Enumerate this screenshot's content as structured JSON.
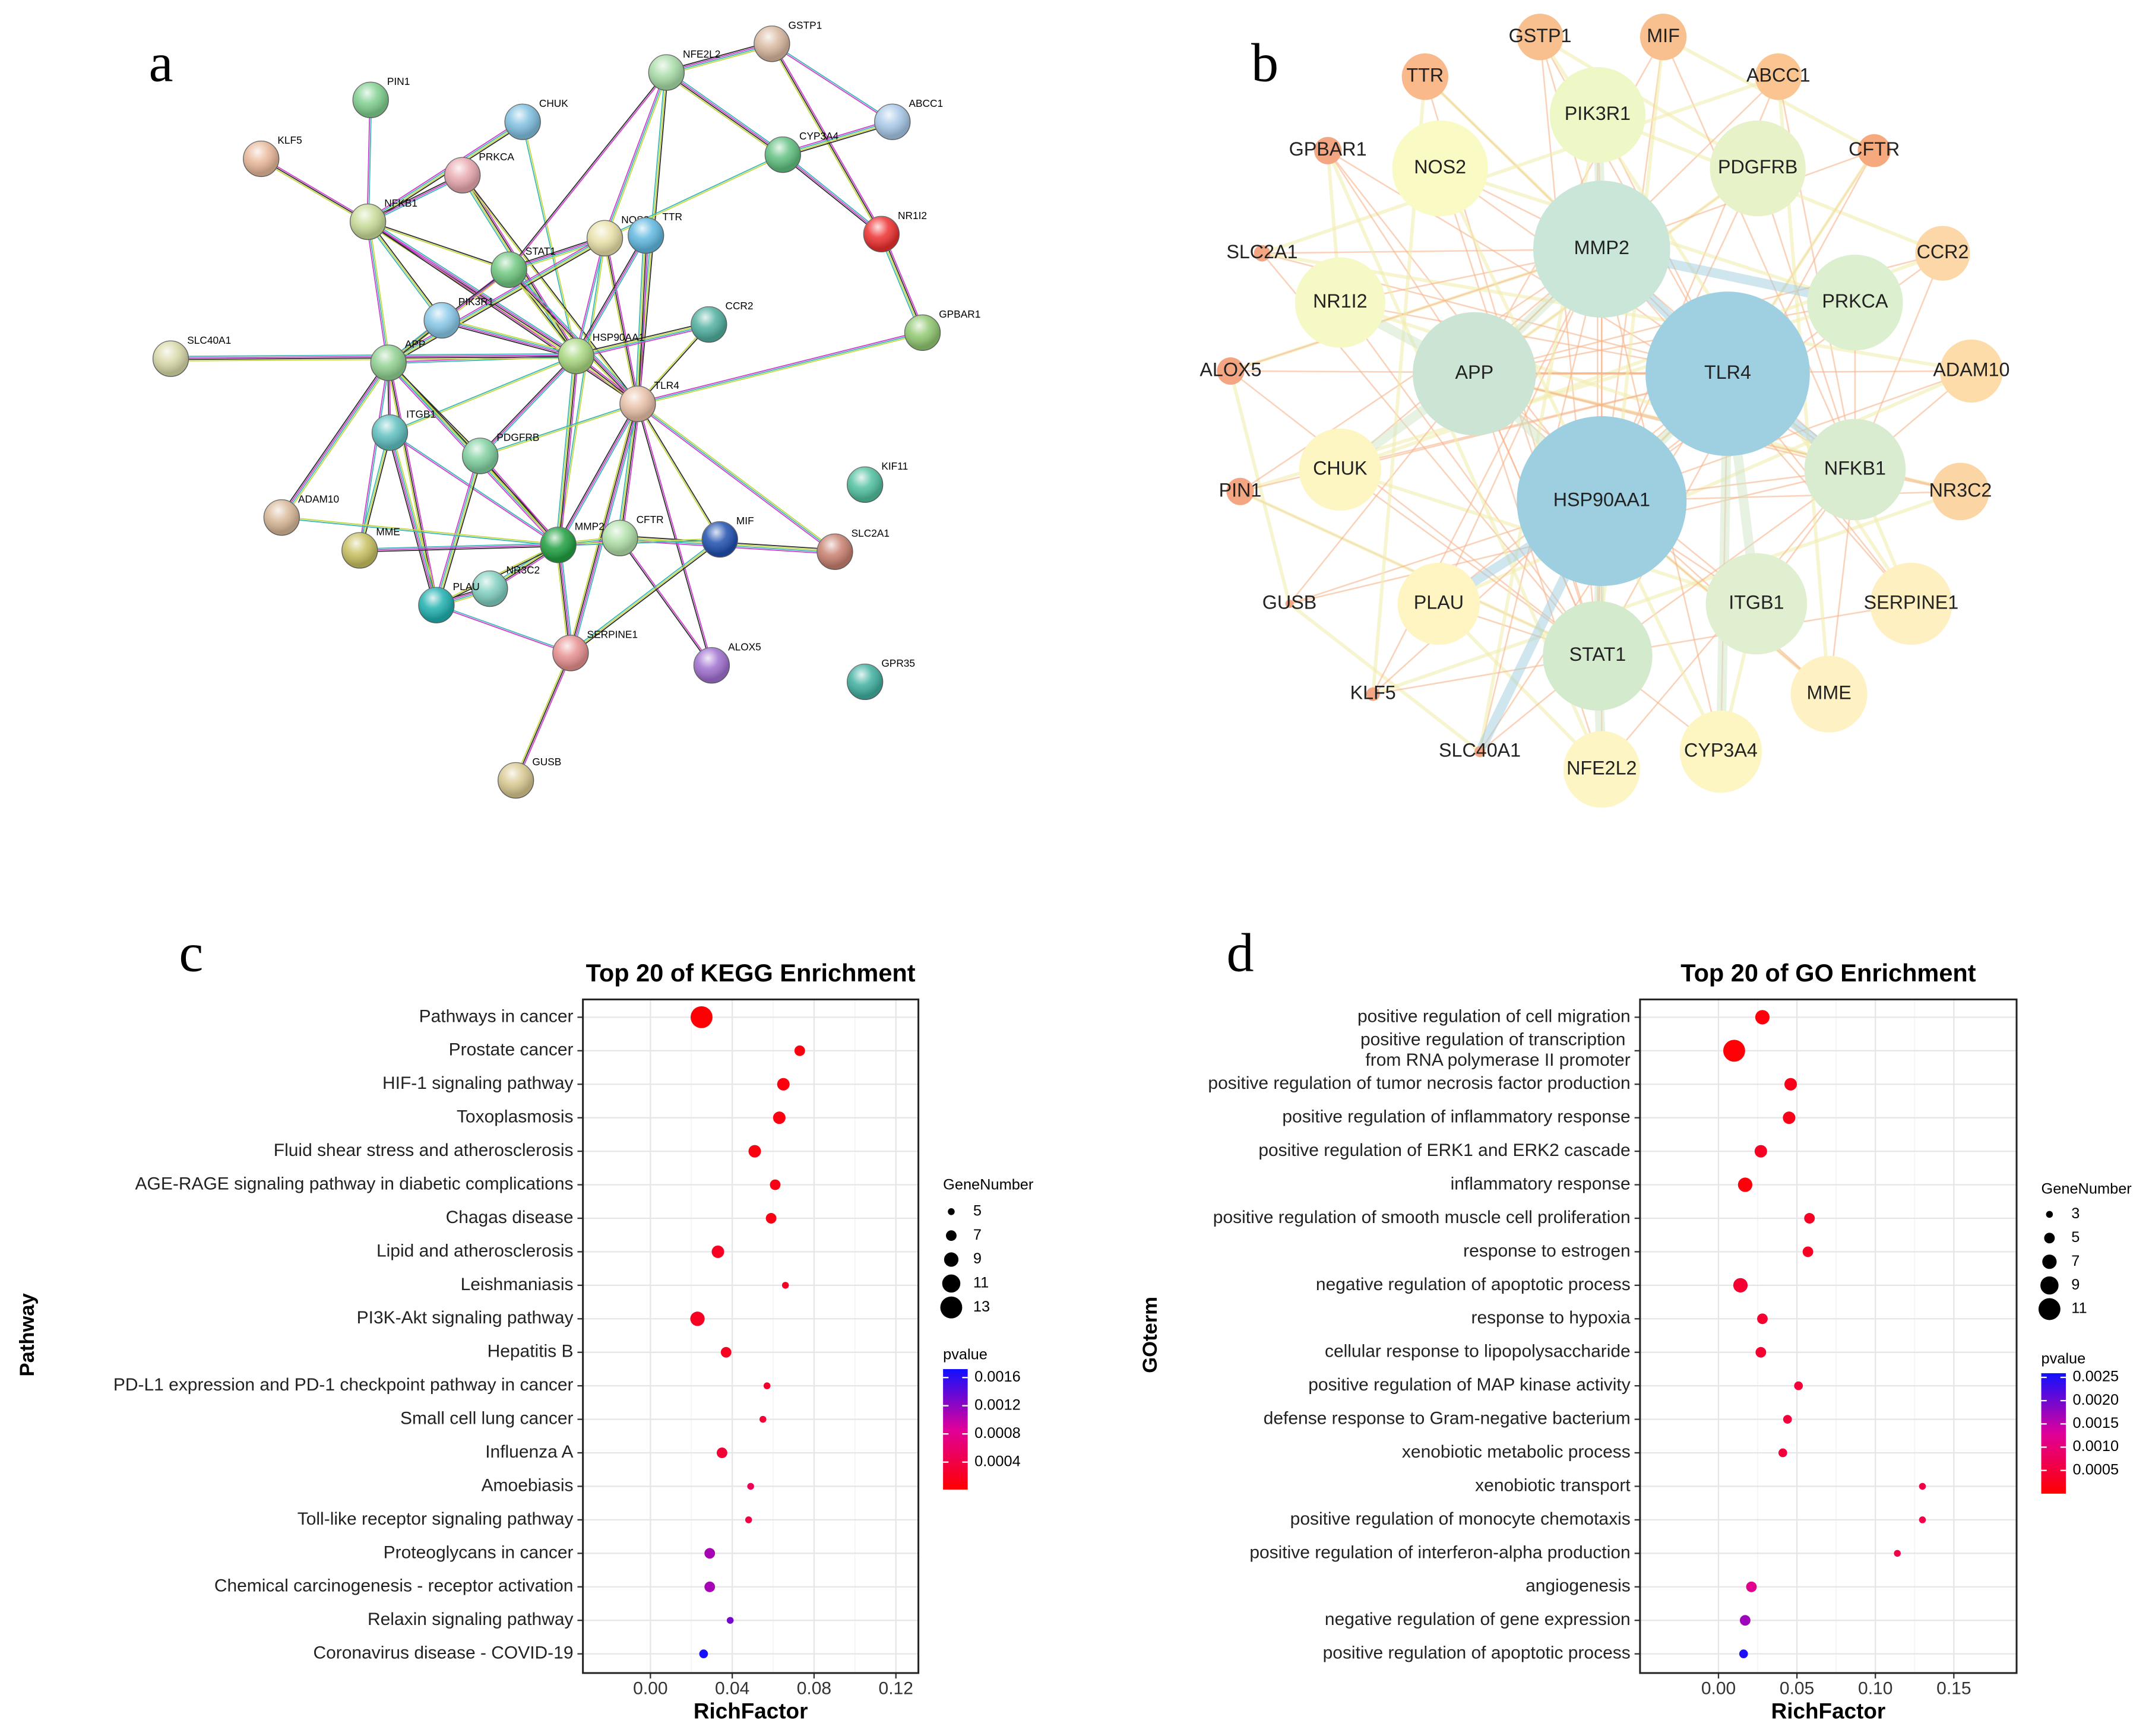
{
  "panel_labels": [
    "a",
    "b",
    "c",
    "d"
  ],
  "networks": [
    {
      "labels": [
        "PIN1",
        "CHUK",
        "KLF5",
        "PRKCA",
        "NFE2L2",
        "GSTP1",
        "ABCC1",
        "CYP3A4",
        "NR1I2",
        "NFKB1",
        "NOS2",
        "TTR",
        "STAT1",
        "PIK3R1",
        "HSP90AA1",
        "CCR2",
        "GPBAR1",
        "SLC40A1",
        "APP",
        "TLR4",
        "ITGB1",
        "PDGFRB",
        "KIF11",
        "ADAM10",
        "MME",
        "MMP2",
        "CFTR",
        "MIF",
        "SLC2A1",
        "NR3C2",
        "PLAU",
        "SERPINE1",
        "ALOX5",
        "GPR35",
        "GUSB"
      ]
    },
    {
      "labels": [
        "GSTP1",
        "MIF",
        "TTR",
        "ABCC1",
        "PIK3R1",
        "GPBAR1",
        "NOS2",
        "PDGFRB",
        "CFTR",
        "MMP2",
        "SLC2A1",
        "CCR2",
        "NR1I2",
        "PRKCA",
        "APP",
        "TLR4",
        "ALOX5",
        "ADAM10",
        "CHUK",
        "NFKB1",
        "PIN1",
        "NR3C2",
        "HSP90AA1",
        "GUSB",
        "PLAU",
        "ITGB1",
        "SERPINE1",
        "STAT1",
        "KLF5",
        "MME",
        "SLC40A1",
        "NFE2L2",
        "CYP3A4"
      ]
    }
  ],
  "chart_data": [
    {
      "type": "scatter",
      "title": "Top 20 of KEGG Enrichment",
      "x_label": "RichFactor",
      "y_label": "Pathway",
      "categories": [
        "Pathways in cancer",
        "Prostate cancer",
        "HIF-1 signaling pathway",
        "Toxoplasmosis",
        "Fluid shear stress and atherosclerosis",
        "AGE-RAGE signaling pathway in diabetic complications",
        "Chagas disease",
        "Lipid and atherosclerosis",
        "Leishmaniasis",
        "PI3K-Akt signaling pathway",
        "Hepatitis B",
        "PD-L1 expression and PD-1 checkpoint pathway in cancer",
        "Small cell lung cancer",
        "Influenza A",
        "Amoebiasis",
        "Toll-like receptor signaling pathway",
        "Proteoglycans in cancer",
        "Chemical carcinogenesis - receptor activation",
        "Relaxin signaling pathway",
        "Coronavirus disease - COVID-19"
      ],
      "values": [
        0.025,
        0.073,
        0.065,
        0.063,
        0.051,
        0.061,
        0.059,
        0.033,
        0.066,
        0.023,
        0.037,
        0.057,
        0.055,
        0.035,
        0.049,
        0.048,
        0.029,
        0.029,
        0.039,
        0.026
      ],
      "sizes": [
        13,
        7,
        8,
        8,
        8,
        7,
        7,
        8,
        5,
        9,
        7,
        5,
        5,
        7,
        5,
        5,
        7,
        7,
        5,
        6
      ],
      "pvalues": [
        3e-05,
        0.0001,
        8e-05,
        0.0001,
        8e-05,
        0.00012,
        0.00012,
        0.0002,
        0.0002,
        0.0002,
        0.0002,
        0.00025,
        0.0003,
        0.0003,
        0.0005,
        0.0004,
        0.0011,
        0.0011,
        0.0013,
        0.0017
      ],
      "xlim": [
        -0.033,
        0.131
      ],
      "xticks": [
        {
          "value": 0,
          "label": "0.00"
        },
        0.04,
        0.08,
        0.12
      ],
      "grid": true,
      "size_legend": {
        "title": "GeneNumber",
        "values": [
          5,
          7,
          9,
          11,
          13
        ]
      },
      "color_legend": {
        "title": "pvalue",
        "lim": [
          1e-05,
          0.00172
        ],
        "ticks": [
          0.0004,
          0.0008,
          0.0012,
          0.0016
        ]
      },
      "color_scale": [
        "#ff0000",
        "#e0009a",
        "#1010ff"
      ],
      "point_color": "#000000"
    },
    {
      "type": "scatter",
      "title": "Top 20 of GO Enrichment",
      "x_label": "RichFactor",
      "y_label": "GOterm",
      "categories": [
        "positive regulation of cell migration",
        "positive regulation of transcription\nfrom RNA polymerase II promoter",
        "positive regulation of tumor necrosis factor production",
        "positive regulation of inflammatory response",
        "positive regulation of ERK1 and ERK2 cascade",
        "inflammatory response",
        "positive regulation of smooth muscle cell proliferation",
        "response to estrogen",
        "negative regulation of apoptotic process",
        "response to hypoxia",
        "cellular response to lipopolysaccharide",
        "positive regulation of MAP kinase activity",
        "defense response to Gram-negative bacterium",
        "xenobiotic metabolic process",
        "xenobiotic transport",
        "positive regulation of monocyte chemotaxis",
        "positive regulation of interferon-alpha production",
        "angiogenesis",
        "negative regulation of gene expression",
        "positive regulation of apoptotic process"
      ],
      "values": [
        0.028,
        0.01,
        0.046,
        0.045,
        0.027,
        0.017,
        0.058,
        0.057,
        0.014,
        0.028,
        0.027,
        0.051,
        0.044,
        0.041,
        0.13,
        0.13,
        0.114,
        0.021,
        0.017,
        0.016
      ],
      "sizes": [
        7,
        11,
        6,
        6,
        6,
        7,
        5,
        5,
        7,
        5,
        5,
        4,
        4,
        4,
        3,
        3,
        3,
        5,
        5,
        4
      ],
      "pvalues": [
        0.0001,
        5e-05,
        0.0002,
        0.0002,
        0.0003,
        0.0001,
        0.0003,
        0.0003,
        0.0004,
        0.0004,
        0.0004,
        0.0005,
        0.0005,
        0.0005,
        0.0006,
        0.0006,
        0.0006,
        0.0012,
        0.0017,
        0.0025
      ],
      "xlim": [
        -0.05,
        0.19
      ],
      "xticks": [
        {
          "value": 0,
          "label": "0.00"
        },
        0.05,
        {
          "value": 0.1,
          "label": "0.10"
        },
        0.15
      ],
      "grid": true,
      "size_legend": {
        "title": "GeneNumber",
        "values": [
          3,
          5,
          7,
          9,
          11
        ]
      },
      "color_legend": {
        "title": "pvalue",
        "lim": [
          0,
          0.00259
        ],
        "ticks": [
          0.0005,
          {
            "value": 0.001,
            "label": "0.0010"
          },
          0.0015,
          {
            "value": 0.002,
            "label": "0.0020"
          },
          0.0025
        ]
      },
      "color_scale": [
        "#ff0000",
        "#e0009a",
        "#1010ff"
      ],
      "point_color": "#000000"
    }
  ]
}
